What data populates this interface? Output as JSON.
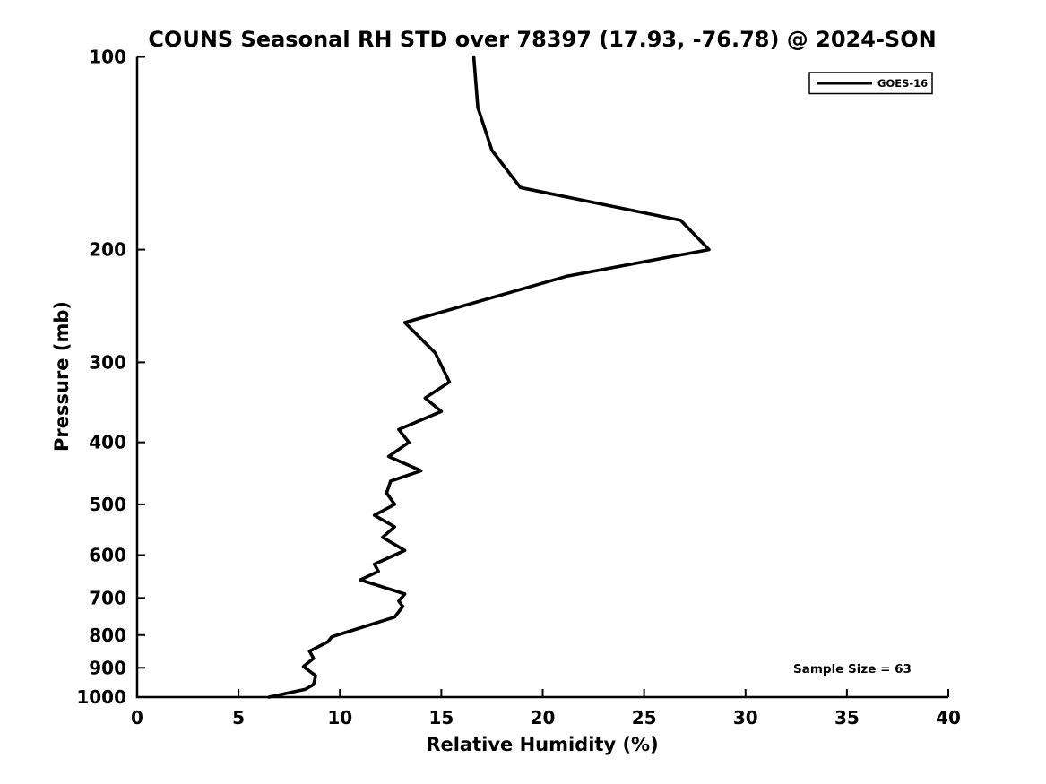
{
  "chart_data": {
    "type": "line",
    "title": "COUNS Seasonal RH STD over 78397 (17.93, -76.78) @ 2024-SON",
    "xlabel": "Relative Humidity (%)",
    "ylabel": "Pressure (mb)",
    "xlim": [
      0,
      40
    ],
    "xticks": [
      0,
      5,
      10,
      15,
      20,
      25,
      30,
      35,
      40
    ],
    "ylim": [
      100,
      1000
    ],
    "yticks": [
      100,
      200,
      300,
      400,
      500,
      600,
      700,
      800,
      900,
      1000
    ],
    "yscale": "log",
    "y_inverted": true,
    "grid": false,
    "legend_position": "top-right",
    "line_color": "#000000",
    "background_color": "#ffffff",
    "annotation": "Sample Size = 63",
    "series": [
      {
        "name": "GOES-16",
        "pressure_mb": [
          100,
          120,
          140,
          160,
          180,
          200,
          220,
          260,
          290,
          322,
          341,
          358,
          382,
          400,
          421,
          443,
          460,
          480,
          500,
          520,
          542,
          563,
          590,
          620,
          636,
          656,
          690,
          708,
          722,
          750,
          805,
          820,
          848,
          870,
          896,
          926,
          956,
          972,
          986,
          1000
        ],
        "rh_std_percent": [
          16.6,
          16.8,
          17.5,
          18.9,
          26.8,
          28.2,
          21.2,
          13.2,
          14.7,
          15.4,
          14.2,
          15.0,
          12.9,
          13.4,
          12.4,
          14.0,
          12.5,
          12.3,
          12.7,
          11.7,
          12.7,
          12.1,
          13.2,
          11.7,
          11.9,
          11.0,
          13.2,
          12.9,
          13.1,
          12.7,
          9.6,
          9.4,
          8.5,
          8.7,
          8.2,
          8.8,
          8.7,
          8.3,
          7.4,
          6.5
        ]
      }
    ]
  }
}
